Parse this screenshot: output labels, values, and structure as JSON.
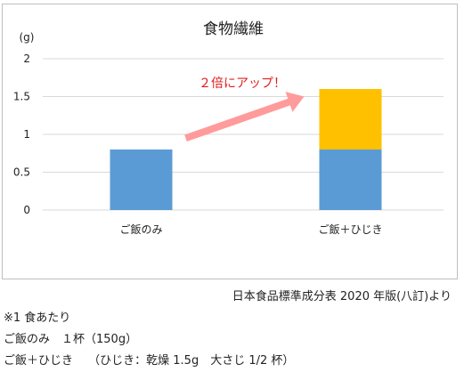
{
  "chart_data": {
    "type": "bar",
    "title": "食物繊維",
    "unit_label": "(g)",
    "categories": [
      "ご飯のみ",
      "ご飯＋ひじき"
    ],
    "series": [
      {
        "color": "#5B9BD5",
        "values": [
          0.8,
          0.8
        ]
      },
      {
        "color": "#FFC000",
        "values": [
          0,
          0.8
        ]
      }
    ],
    "stacked": true,
    "ylim": [
      0,
      2
    ],
    "yticks": [
      "0",
      "0.5",
      "1",
      "1.5",
      "2"
    ],
    "grid": true,
    "annotation": {
      "text": "２倍にアップ！",
      "color": "#E02020",
      "arrow_color": "#FF9B9B"
    }
  },
  "source": "日本食品標準成分表 2020 年版(八訂)より",
  "notes": [
    "※1 食あたり",
    "ご飯のみ　１杯（150g）",
    "ご飯＋ひじき　 （ひじき：乾燥 1.5g　大さじ 1/2 杯）"
  ]
}
